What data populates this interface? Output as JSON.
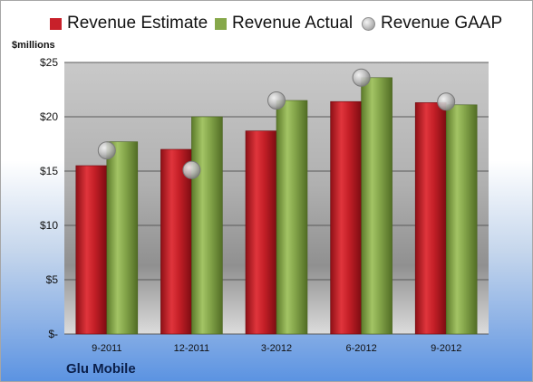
{
  "chart_data": {
    "type": "bar",
    "categories": [
      "9-2011",
      "12-2011",
      "3-2012",
      "6-2012",
      "9-2012"
    ],
    "series": [
      {
        "name": "Revenue Estimate",
        "kind": "bar",
        "color": "#c8202a",
        "values": [
          15.5,
          17.0,
          18.7,
          21.4,
          21.3
        ]
      },
      {
        "name": "Revenue Actual",
        "kind": "bar",
        "color": "#86a84a",
        "values": [
          17.7,
          20.0,
          21.5,
          23.6,
          21.1
        ]
      },
      {
        "name": "Revenue GAAP",
        "kind": "marker",
        "color": "#b8b8b8",
        "values": [
          16.9,
          15.1,
          21.5,
          23.6,
          21.4
        ]
      }
    ],
    "yticks": [
      0,
      5,
      10,
      15,
      20,
      25
    ],
    "ytick_labels": [
      "$-",
      "$5",
      "$10",
      "$15",
      "$20",
      "$25"
    ],
    "ylim": [
      0,
      25
    ],
    "ylabel": "$millions",
    "grid": true,
    "legend": "top"
  },
  "company": "Glu Mobile"
}
